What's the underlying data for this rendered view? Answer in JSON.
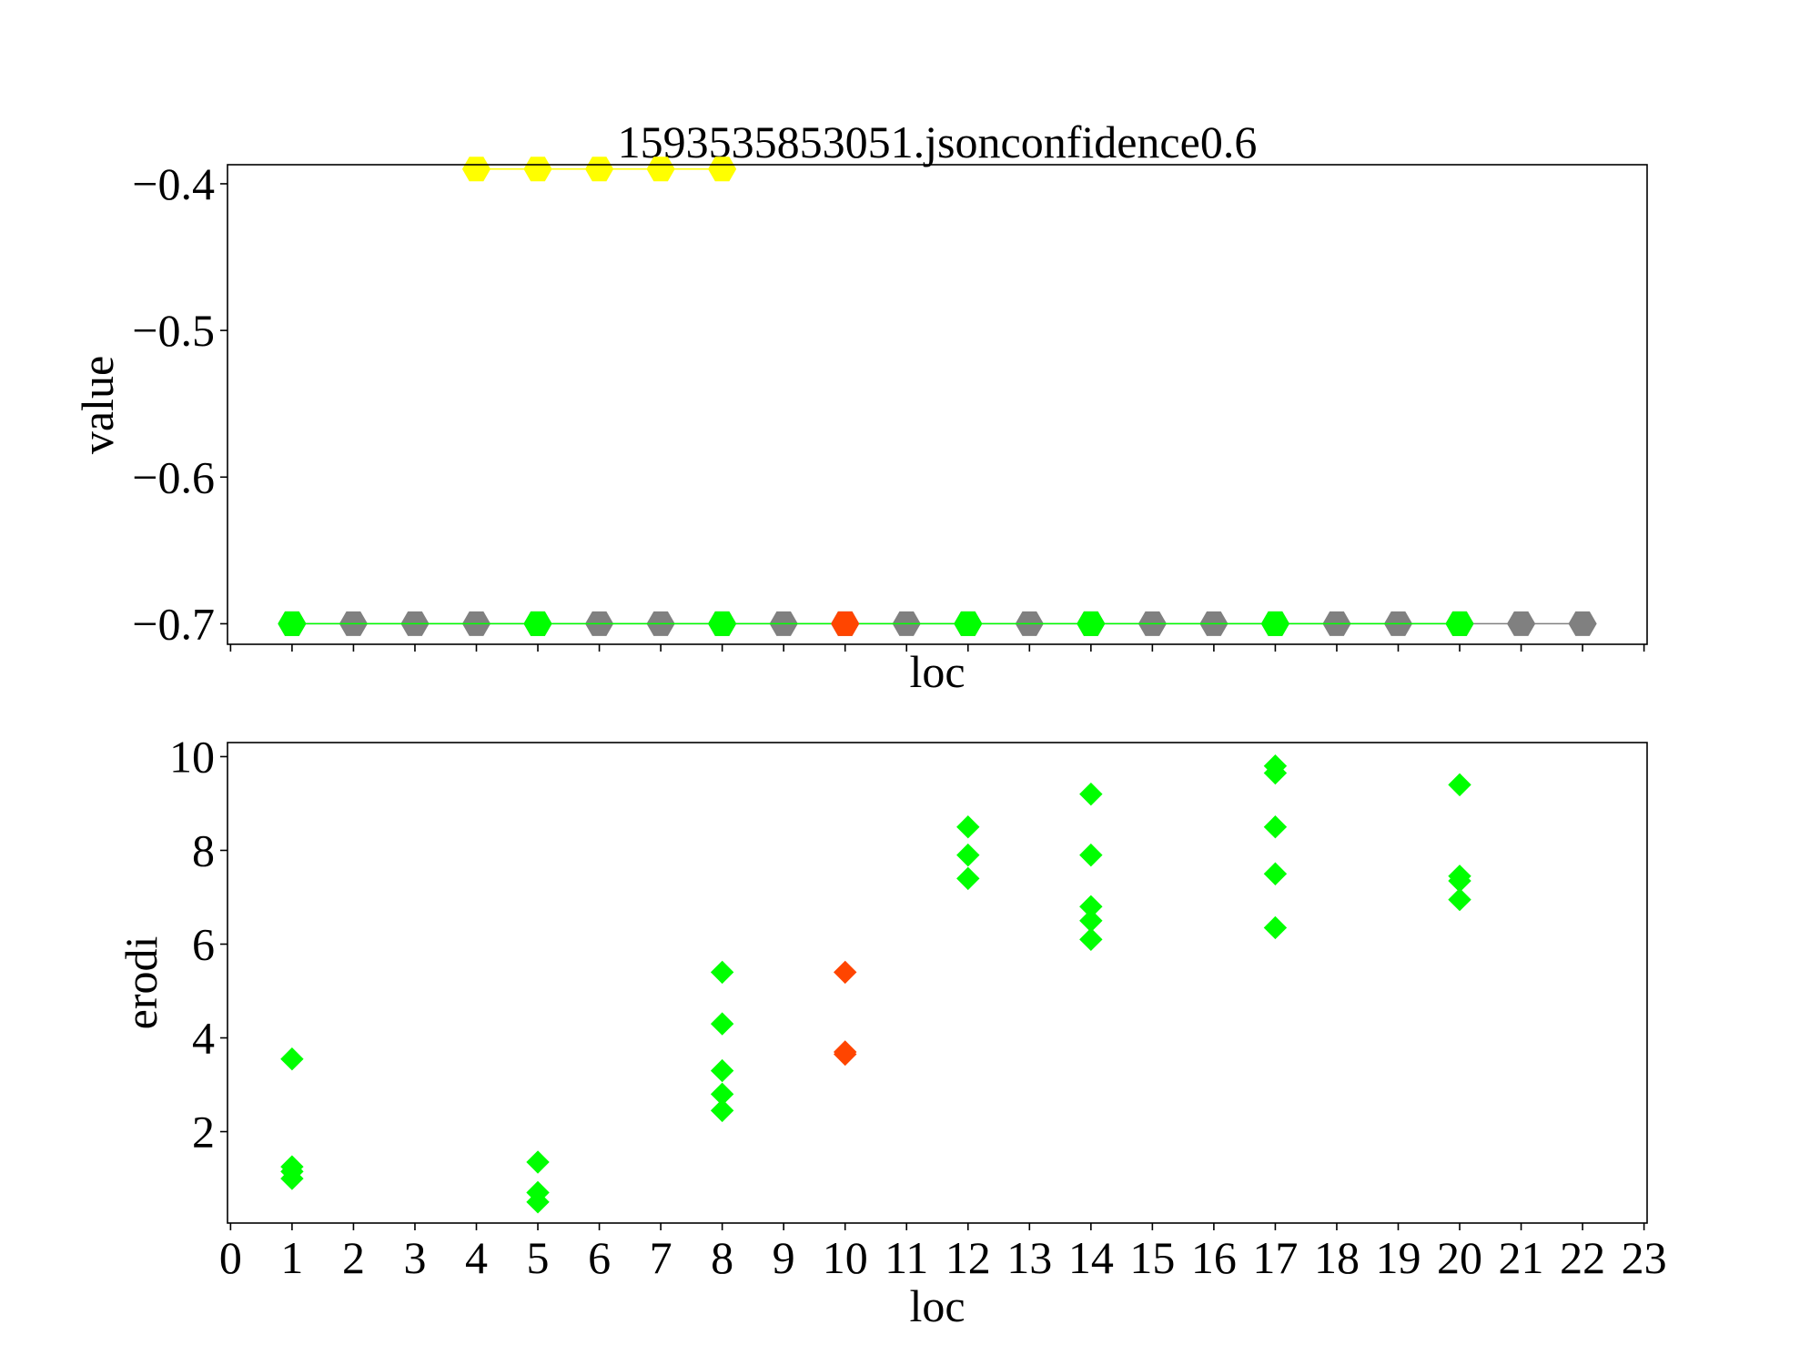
{
  "chart_data": [
    {
      "type": "line",
      "title": "1593535853051.jsonconfidence0.6",
      "xlabel": "loc",
      "ylabel": "value",
      "xlim": [
        -0.05,
        23.05
      ],
      "ylim": [
        -0.714,
        -0.387
      ],
      "x_tick_labels_visible": false,
      "x_ticks": [
        0,
        1,
        2,
        3,
        4,
        5,
        6,
        7,
        8,
        9,
        10,
        11,
        12,
        13,
        14,
        15,
        16,
        17,
        18,
        19,
        20,
        21,
        22,
        23
      ],
      "y_ticks": [
        {
          "value": -0.4,
          "label": "−0.4"
        },
        {
          "value": -0.5,
          "label": "−0.5"
        },
        {
          "value": -0.6,
          "label": "−0.6"
        },
        {
          "value": -0.7,
          "label": "−0.7"
        }
      ],
      "marker": "hexagon",
      "series": [
        {
          "color": "#ffff00",
          "x": [
            4,
            5,
            6,
            7,
            8
          ],
          "y": [
            -0.39,
            -0.39,
            -0.39,
            -0.39,
            -0.39
          ]
        },
        {
          "color": "#808080",
          "x": [
            1,
            2,
            3,
            4,
            5,
            6,
            7,
            8,
            9,
            10,
            11,
            12,
            13,
            14,
            15,
            16,
            17,
            18,
            19,
            20,
            21,
            22
          ],
          "y": [
            -0.7,
            -0.7,
            -0.7,
            -0.7,
            -0.7,
            -0.7,
            -0.7,
            -0.7,
            -0.7,
            -0.7,
            -0.7,
            -0.7,
            -0.7,
            -0.7,
            -0.7,
            -0.7,
            -0.7,
            -0.7,
            -0.7,
            -0.7,
            -0.7,
            -0.7
          ]
        },
        {
          "color": "#00ff00",
          "x": [
            1,
            5,
            8,
            12,
            14,
            17,
            20
          ],
          "y": [
            -0.7,
            -0.7,
            -0.7,
            -0.7,
            -0.7,
            -0.7,
            -0.7
          ]
        },
        {
          "color": "#ff4500",
          "x": [
            10
          ],
          "y": [
            -0.7
          ]
        }
      ],
      "grid": false
    },
    {
      "type": "scatter",
      "title": "",
      "xlabel": "loc",
      "ylabel": "erodi",
      "xlim": [
        -0.05,
        23.05
      ],
      "ylim": [
        0.05,
        10.3
      ],
      "x_ticks": [
        {
          "value": 0,
          "label": "0"
        },
        {
          "value": 1,
          "label": "1"
        },
        {
          "value": 2,
          "label": "2"
        },
        {
          "value": 3,
          "label": "3"
        },
        {
          "value": 4,
          "label": "4"
        },
        {
          "value": 5,
          "label": "5"
        },
        {
          "value": 6,
          "label": "6"
        },
        {
          "value": 7,
          "label": "7"
        },
        {
          "value": 8,
          "label": "8"
        },
        {
          "value": 9,
          "label": "9"
        },
        {
          "value": 10,
          "label": "10"
        },
        {
          "value": 11,
          "label": "11"
        },
        {
          "value": 12,
          "label": "12"
        },
        {
          "value": 13,
          "label": "13"
        },
        {
          "value": 14,
          "label": "14"
        },
        {
          "value": 15,
          "label": "15"
        },
        {
          "value": 16,
          "label": "16"
        },
        {
          "value": 17,
          "label": "17"
        },
        {
          "value": 18,
          "label": "18"
        },
        {
          "value": 19,
          "label": "19"
        },
        {
          "value": 20,
          "label": "20"
        },
        {
          "value": 21,
          "label": "21"
        },
        {
          "value": 22,
          "label": "22"
        },
        {
          "value": 23,
          "label": "23"
        }
      ],
      "y_ticks": [
        {
          "value": 2,
          "label": "2"
        },
        {
          "value": 4,
          "label": "4"
        },
        {
          "value": 6,
          "label": "6"
        },
        {
          "value": 8,
          "label": "8"
        },
        {
          "value": 10,
          "label": "10"
        }
      ],
      "marker": "diamond",
      "series": [
        {
          "color": "#00ff00",
          "x": [
            1,
            1,
            1,
            1,
            5,
            5,
            5,
            8,
            8,
            8,
            8,
            8,
            12,
            12,
            12,
            14,
            14,
            14,
            14,
            14,
            17,
            17,
            17,
            17,
            17,
            20,
            20,
            20,
            20
          ],
          "y": [
            3.55,
            1.25,
            1.15,
            1.0,
            1.35,
            0.7,
            0.5,
            5.4,
            4.3,
            3.3,
            2.8,
            2.45,
            8.5,
            7.9,
            7.4,
            9.2,
            7.9,
            6.8,
            6.5,
            6.1,
            9.8,
            9.65,
            8.5,
            7.5,
            6.35,
            9.4,
            7.45,
            7.35,
            6.95
          ]
        },
        {
          "color": "#ff4500",
          "x": [
            10,
            10,
            10
          ],
          "y": [
            5.4,
            3.7,
            3.65
          ]
        }
      ],
      "grid": false
    }
  ]
}
